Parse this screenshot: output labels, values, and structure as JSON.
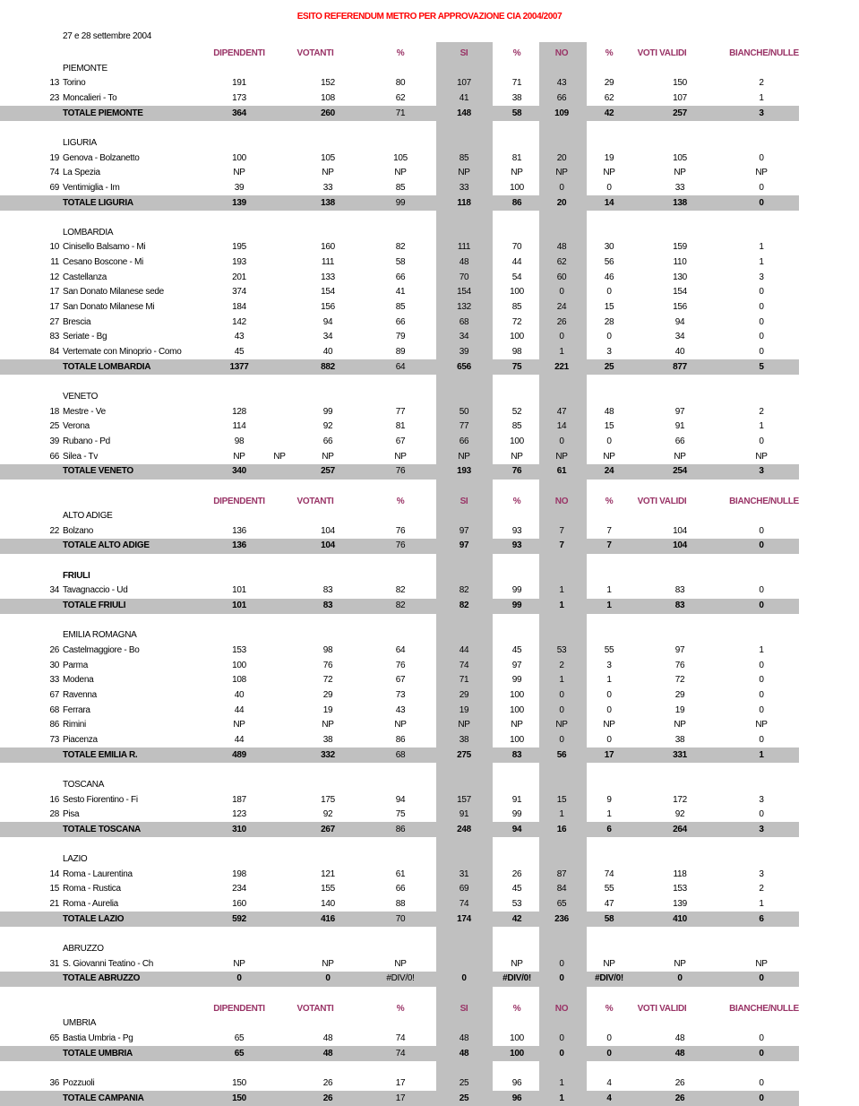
{
  "title": "ESITO REFERENDUM METRO PER APPROVAZIONE CIA 2004/2007",
  "date": "27 e 28 settembre 2004",
  "headers": [
    "DIPENDENTI",
    "VOTANTI",
    "%",
    "SI",
    "%",
    "NO",
    "%",
    "VOTI VALIDI",
    "BIANCHE/NULLE"
  ],
  "colors": {
    "title": "#ff0000",
    "header": "#993366",
    "shade": "#c0c0c0"
  },
  "rows": [
    {
      "t": "h"
    },
    {
      "t": "r",
      "label": "PIEMONTE"
    },
    {
      "t": "d",
      "code": "13",
      "name": "Torino",
      "v": [
        "191",
        "152",
        "80",
        "107",
        "71",
        "43",
        "29",
        "150",
        "2"
      ]
    },
    {
      "t": "d",
      "code": "23",
      "name": "Moncalieri - To",
      "v": [
        "173",
        "108",
        "62",
        "41",
        "38",
        "66",
        "62",
        "107",
        "1"
      ]
    },
    {
      "t": "tot",
      "name": "TOTALE PIEMONTE",
      "v": [
        "364",
        "260",
        "71",
        "148",
        "58",
        "109",
        "42",
        "257",
        "3"
      ]
    },
    {
      "t": "b"
    },
    {
      "t": "r",
      "label": "LIGURIA"
    },
    {
      "t": "d",
      "code": "19",
      "name": "Genova - Bolzanetto",
      "v": [
        "100",
        "105",
        "105",
        "85",
        "81",
        "20",
        "19",
        "105",
        "0"
      ]
    },
    {
      "t": "d",
      "code": "74",
      "name": "La Spezia",
      "v": [
        "NP",
        "NP",
        "NP",
        "NP",
        "NP",
        "NP",
        "NP",
        "NP",
        "NP"
      ]
    },
    {
      "t": "d",
      "code": "69",
      "name": "Ventimiglia - Im",
      "v": [
        "39",
        "33",
        "85",
        "33",
        "100",
        "0",
        "0",
        "33",
        "0"
      ]
    },
    {
      "t": "tot",
      "name": "TOTALE LIGURIA",
      "v": [
        "139",
        "138",
        "99",
        "118",
        "86",
        "20",
        "14",
        "138",
        "0"
      ]
    },
    {
      "t": "b"
    },
    {
      "t": "r",
      "label": "LOMBARDIA"
    },
    {
      "t": "d",
      "code": "10",
      "name": "Cinisello Balsamo - Mi",
      "v": [
        "195",
        "160",
        "82",
        "111",
        "70",
        "48",
        "30",
        "159",
        "1"
      ]
    },
    {
      "t": "d",
      "code": "11",
      "name": "Cesano Boscone - Mi",
      "v": [
        "193",
        "111",
        "58",
        "48",
        "44",
        "62",
        "56",
        "110",
        "1"
      ]
    },
    {
      "t": "d",
      "code": "12",
      "name": "Castellanza",
      "v": [
        "201",
        "133",
        "66",
        "70",
        "54",
        "60",
        "46",
        "130",
        "3"
      ]
    },
    {
      "t": "d",
      "code": "17",
      "name": "San Donato Milanese sede",
      "v": [
        "374",
        "154",
        "41",
        "154",
        "100",
        "0",
        "0",
        "154",
        "0"
      ]
    },
    {
      "t": "d",
      "code": "17",
      "name": "San Donato Milanese Mi",
      "v": [
        "184",
        "156",
        "85",
        "132",
        "85",
        "24",
        "15",
        "156",
        "0"
      ]
    },
    {
      "t": "d",
      "code": "27",
      "name": "Brescia",
      "v": [
        "142",
        "94",
        "66",
        "68",
        "72",
        "26",
        "28",
        "94",
        "0"
      ]
    },
    {
      "t": "d",
      "code": "83",
      "name": "Seriate - Bg",
      "v": [
        "43",
        "34",
        "79",
        "34",
        "100",
        "0",
        "0",
        "34",
        "0"
      ]
    },
    {
      "t": "d",
      "code": "84",
      "name": "Vertemate con Minoprio - Como",
      "v": [
        "45",
        "40",
        "89",
        "39",
        "98",
        "1",
        "3",
        "40",
        "0"
      ]
    },
    {
      "t": "tot",
      "name": "TOTALE LOMBARDIA",
      "v": [
        "1377",
        "882",
        "64",
        "656",
        "75",
        "221",
        "25",
        "877",
        "5"
      ]
    },
    {
      "t": "b"
    },
    {
      "t": "r",
      "label": "VENETO"
    },
    {
      "t": "d",
      "code": "18",
      "name": "Mestre - Ve",
      "v": [
        "128",
        "99",
        "77",
        "50",
        "52",
        "47",
        "48",
        "97",
        "2"
      ]
    },
    {
      "t": "d",
      "code": "25",
      "name": "Verona",
      "v": [
        "114",
        "92",
        "81",
        "77",
        "85",
        "14",
        "15",
        "91",
        "1"
      ]
    },
    {
      "t": "d",
      "code": "39",
      "name": "Rubano - Pd",
      "v": [
        "98",
        "66",
        "67",
        "66",
        "100",
        "0",
        "0",
        "66",
        "0"
      ]
    },
    {
      "t": "d",
      "code": "66",
      "name": "Silea - Tv",
      "v": [
        "NP",
        "NP",
        "NP",
        "NP",
        "NP",
        "NP",
        "NP",
        "NP",
        "NP"
      ],
      "extra": "NP"
    },
    {
      "t": "tot",
      "name": "TOTALE VENETO",
      "v": [
        "340",
        "257",
        "76",
        "193",
        "76",
        "61",
        "24",
        "254",
        "3"
      ]
    },
    {
      "t": "b"
    },
    {
      "t": "h"
    },
    {
      "t": "r",
      "label": "ALTO ADIGE"
    },
    {
      "t": "d",
      "code": "22",
      "name": "Bolzano",
      "v": [
        "136",
        "104",
        "76",
        "97",
        "93",
        "7",
        "7",
        "104",
        "0"
      ]
    },
    {
      "t": "tot",
      "name": "TOTALE ALTO ADIGE",
      "v": [
        "136",
        "104",
        "76",
        "97",
        "93",
        "7",
        "7",
        "104",
        "0"
      ]
    },
    {
      "t": "b"
    },
    {
      "t": "r",
      "label": "FRIULI",
      "bold": true
    },
    {
      "t": "d",
      "code": "34",
      "name": "Tavagnaccio - Ud",
      "v": [
        "101",
        "83",
        "82",
        "82",
        "99",
        "1",
        "1",
        "83",
        "0"
      ]
    },
    {
      "t": "tot",
      "name": "TOTALE FRIULI",
      "v": [
        "101",
        "83",
        "82",
        "82",
        "99",
        "1",
        "1",
        "83",
        "0"
      ]
    },
    {
      "t": "b"
    },
    {
      "t": "r",
      "label": "EMILIA ROMAGNA"
    },
    {
      "t": "d",
      "code": "26",
      "name": "Castelmaggiore - Bo",
      "v": [
        "153",
        "98",
        "64",
        "44",
        "45",
        "53",
        "55",
        "97",
        "1"
      ]
    },
    {
      "t": "d",
      "code": "30",
      "name": "Parma",
      "v": [
        "100",
        "76",
        "76",
        "74",
        "97",
        "2",
        "3",
        "76",
        "0"
      ]
    },
    {
      "t": "d",
      "code": "33",
      "name": "Modena",
      "v": [
        "108",
        "72",
        "67",
        "71",
        "99",
        "1",
        "1",
        "72",
        "0"
      ]
    },
    {
      "t": "d",
      "code": "67",
      "name": "Ravenna",
      "v": [
        "40",
        "29",
        "73",
        "29",
        "100",
        "0",
        "0",
        "29",
        "0"
      ]
    },
    {
      "t": "d",
      "code": "68",
      "name": "Ferrara",
      "v": [
        "44",
        "19",
        "43",
        "19",
        "100",
        "0",
        "0",
        "19",
        "0"
      ]
    },
    {
      "t": "d",
      "code": "86",
      "name": "Rimini",
      "v": [
        "NP",
        "NP",
        "NP",
        "NP",
        "NP",
        "NP",
        "NP",
        "NP",
        "NP"
      ]
    },
    {
      "t": "d",
      "code": "73",
      "name": "Piacenza",
      "v": [
        "44",
        "38",
        "86",
        "38",
        "100",
        "0",
        "0",
        "38",
        "0"
      ]
    },
    {
      "t": "tot",
      "name": "TOTALE EMILIA R.",
      "v": [
        "489",
        "332",
        "68",
        "275",
        "83",
        "56",
        "17",
        "331",
        "1"
      ]
    },
    {
      "t": "b"
    },
    {
      "t": "r",
      "label": "TOSCANA"
    },
    {
      "t": "d",
      "code": "16",
      "name": "Sesto Fiorentino - Fi",
      "v": [
        "187",
        "175",
        "94",
        "157",
        "91",
        "15",
        "9",
        "172",
        "3"
      ]
    },
    {
      "t": "d",
      "code": "28",
      "name": "Pisa",
      "v": [
        "123",
        "92",
        "75",
        "91",
        "99",
        "1",
        "1",
        "92",
        "0"
      ]
    },
    {
      "t": "tot",
      "name": "TOTALE TOSCANA",
      "v": [
        "310",
        "267",
        "86",
        "248",
        "94",
        "16",
        "6",
        "264",
        "3"
      ]
    },
    {
      "t": "b"
    },
    {
      "t": "r",
      "label": "LAZIO"
    },
    {
      "t": "d",
      "code": "14",
      "name": "Roma - Laurentina",
      "v": [
        "198",
        "121",
        "61",
        "31",
        "26",
        "87",
        "74",
        "118",
        "3"
      ]
    },
    {
      "t": "d",
      "code": "15",
      "name": "Roma - Rustica",
      "v": [
        "234",
        "155",
        "66",
        "69",
        "45",
        "84",
        "55",
        "153",
        "2"
      ]
    },
    {
      "t": "d",
      "code": "21",
      "name": "Roma - Aurelia",
      "v": [
        "160",
        "140",
        "88",
        "74",
        "53",
        "65",
        "47",
        "139",
        "1"
      ]
    },
    {
      "t": "tot",
      "name": "TOTALE LAZIO",
      "v": [
        "592",
        "416",
        "70",
        "174",
        "42",
        "236",
        "58",
        "410",
        "6"
      ]
    },
    {
      "t": "b"
    },
    {
      "t": "r",
      "label": "ABRUZZO"
    },
    {
      "t": "d",
      "code": "31",
      "name": "S. Giovanni Teatino - Ch",
      "v": [
        "NP",
        "NP",
        "NP",
        "",
        "NP",
        "0",
        "NP",
        "NP",
        "NP"
      ]
    },
    {
      "t": "tot",
      "name": "TOTALE ABRUZZO",
      "v": [
        "0",
        "0",
        "#DIV/0!",
        "0",
        "#DIV/0!",
        "0",
        "#DIV/0!",
        "0",
        "0"
      ]
    },
    {
      "t": "b"
    },
    {
      "t": "h"
    },
    {
      "t": "r",
      "label": "UMBRIA"
    },
    {
      "t": "d",
      "code": "65",
      "name": "Bastia Umbria - Pg",
      "v": [
        "65",
        "48",
        "74",
        "48",
        "100",
        "0",
        "0",
        "48",
        "0"
      ]
    },
    {
      "t": "tot",
      "name": "TOTALE UMBRIA",
      "v": [
        "65",
        "48",
        "74",
        "48",
        "100",
        "0",
        "0",
        "48",
        "0"
      ]
    },
    {
      "t": "b"
    },
    {
      "t": "d",
      "code": "36",
      "name": "Pozzuoli",
      "v": [
        "150",
        "26",
        "17",
        "25",
        "96",
        "1",
        "4",
        "26",
        "0"
      ]
    },
    {
      "t": "tot",
      "name": "TOTALE CAMPANIA",
      "v": [
        "150",
        "26",
        "17",
        "25",
        "96",
        "1",
        "4",
        "26",
        "0"
      ]
    }
  ]
}
